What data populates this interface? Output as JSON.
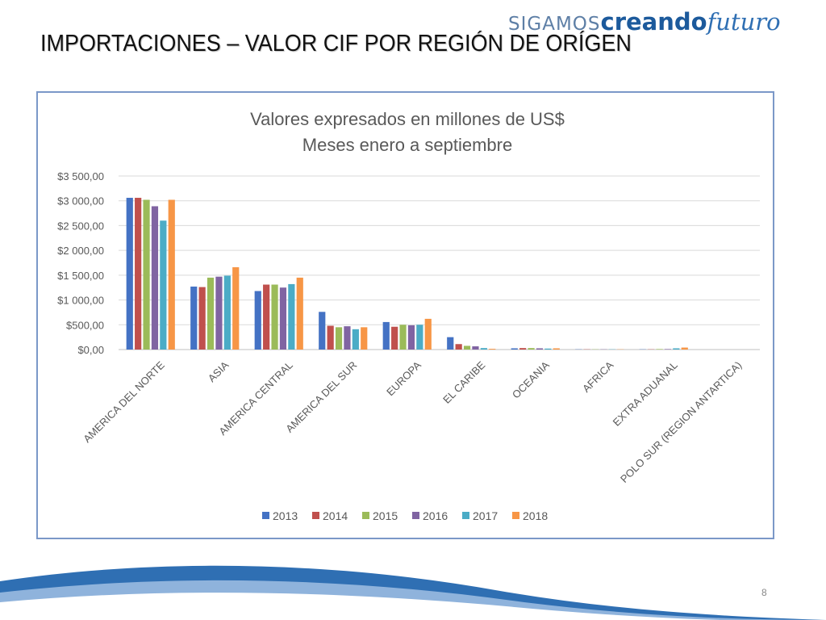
{
  "slide": {
    "title": "IMPORTACIONES –  VALOR CIF POR REGIÓN DE ORÍGEN",
    "page_number": "8",
    "logo": {
      "part1": "SIGAMOS",
      "part2": "creando",
      "part3": "futuro"
    }
  },
  "colors": {
    "logo_light": "#5e7fa6",
    "logo_dark": "#1c5a9c",
    "frame_border": "#7b98c8",
    "swoosh_blue": "#2f6fb3"
  },
  "chart_data": {
    "type": "bar",
    "title": "Valores expresados en millones de US$",
    "subtitle": "Meses enero a septiembre",
    "xlabel": "",
    "ylabel": "",
    "ylim": [
      0,
      3500
    ],
    "y_ticks": [
      {
        "value": 0,
        "label": "$0,00"
      },
      {
        "value": 500,
        "label": "$500,00"
      },
      {
        "value": 1000,
        "label": "$1 000,00"
      },
      {
        "value": 1500,
        "label": "$1 500,00"
      },
      {
        "value": 2000,
        "label": "$2 000,00"
      },
      {
        "value": 2500,
        "label": "$2 500,00"
      },
      {
        "value": 3000,
        "label": "$3 000,00"
      },
      {
        "value": 3500,
        "label": "$3 500,00"
      }
    ],
    "grid": true,
    "legend_position": "bottom",
    "categories": [
      "AMERICA DEL NORTE",
      "ASIA",
      "AMERICA CENTRAL",
      "AMERICA DEL SUR",
      "EUROPA",
      "EL CARIBE",
      "OCEANIA",
      "AFRICA",
      "EXTRA ADUANAL",
      "POLO SUR (REGION ANTARTICA)"
    ],
    "series": [
      {
        "name": "2013",
        "color": "#4472c4",
        "values": [
          3060,
          1270,
          1180,
          760,
          555,
          250,
          25,
          5,
          5,
          0
        ]
      },
      {
        "name": "2014",
        "color": "#c0504d",
        "values": [
          3060,
          1260,
          1310,
          480,
          460,
          110,
          30,
          5,
          5,
          0
        ]
      },
      {
        "name": "2015",
        "color": "#9bbb59",
        "values": [
          3020,
          1450,
          1310,
          450,
          500,
          75,
          30,
          5,
          10,
          0
        ]
      },
      {
        "name": "2016",
        "color": "#8064a2",
        "values": [
          2890,
          1470,
          1250,
          470,
          490,
          65,
          25,
          5,
          10,
          0
        ]
      },
      {
        "name": "2017",
        "color": "#4bacc6",
        "values": [
          2600,
          1490,
          1320,
          410,
          500,
          30,
          20,
          5,
          25,
          0
        ]
      },
      {
        "name": "2018",
        "color": "#f79646",
        "values": [
          3020,
          1660,
          1450,
          450,
          620,
          15,
          25,
          5,
          40,
          0
        ]
      }
    ]
  }
}
